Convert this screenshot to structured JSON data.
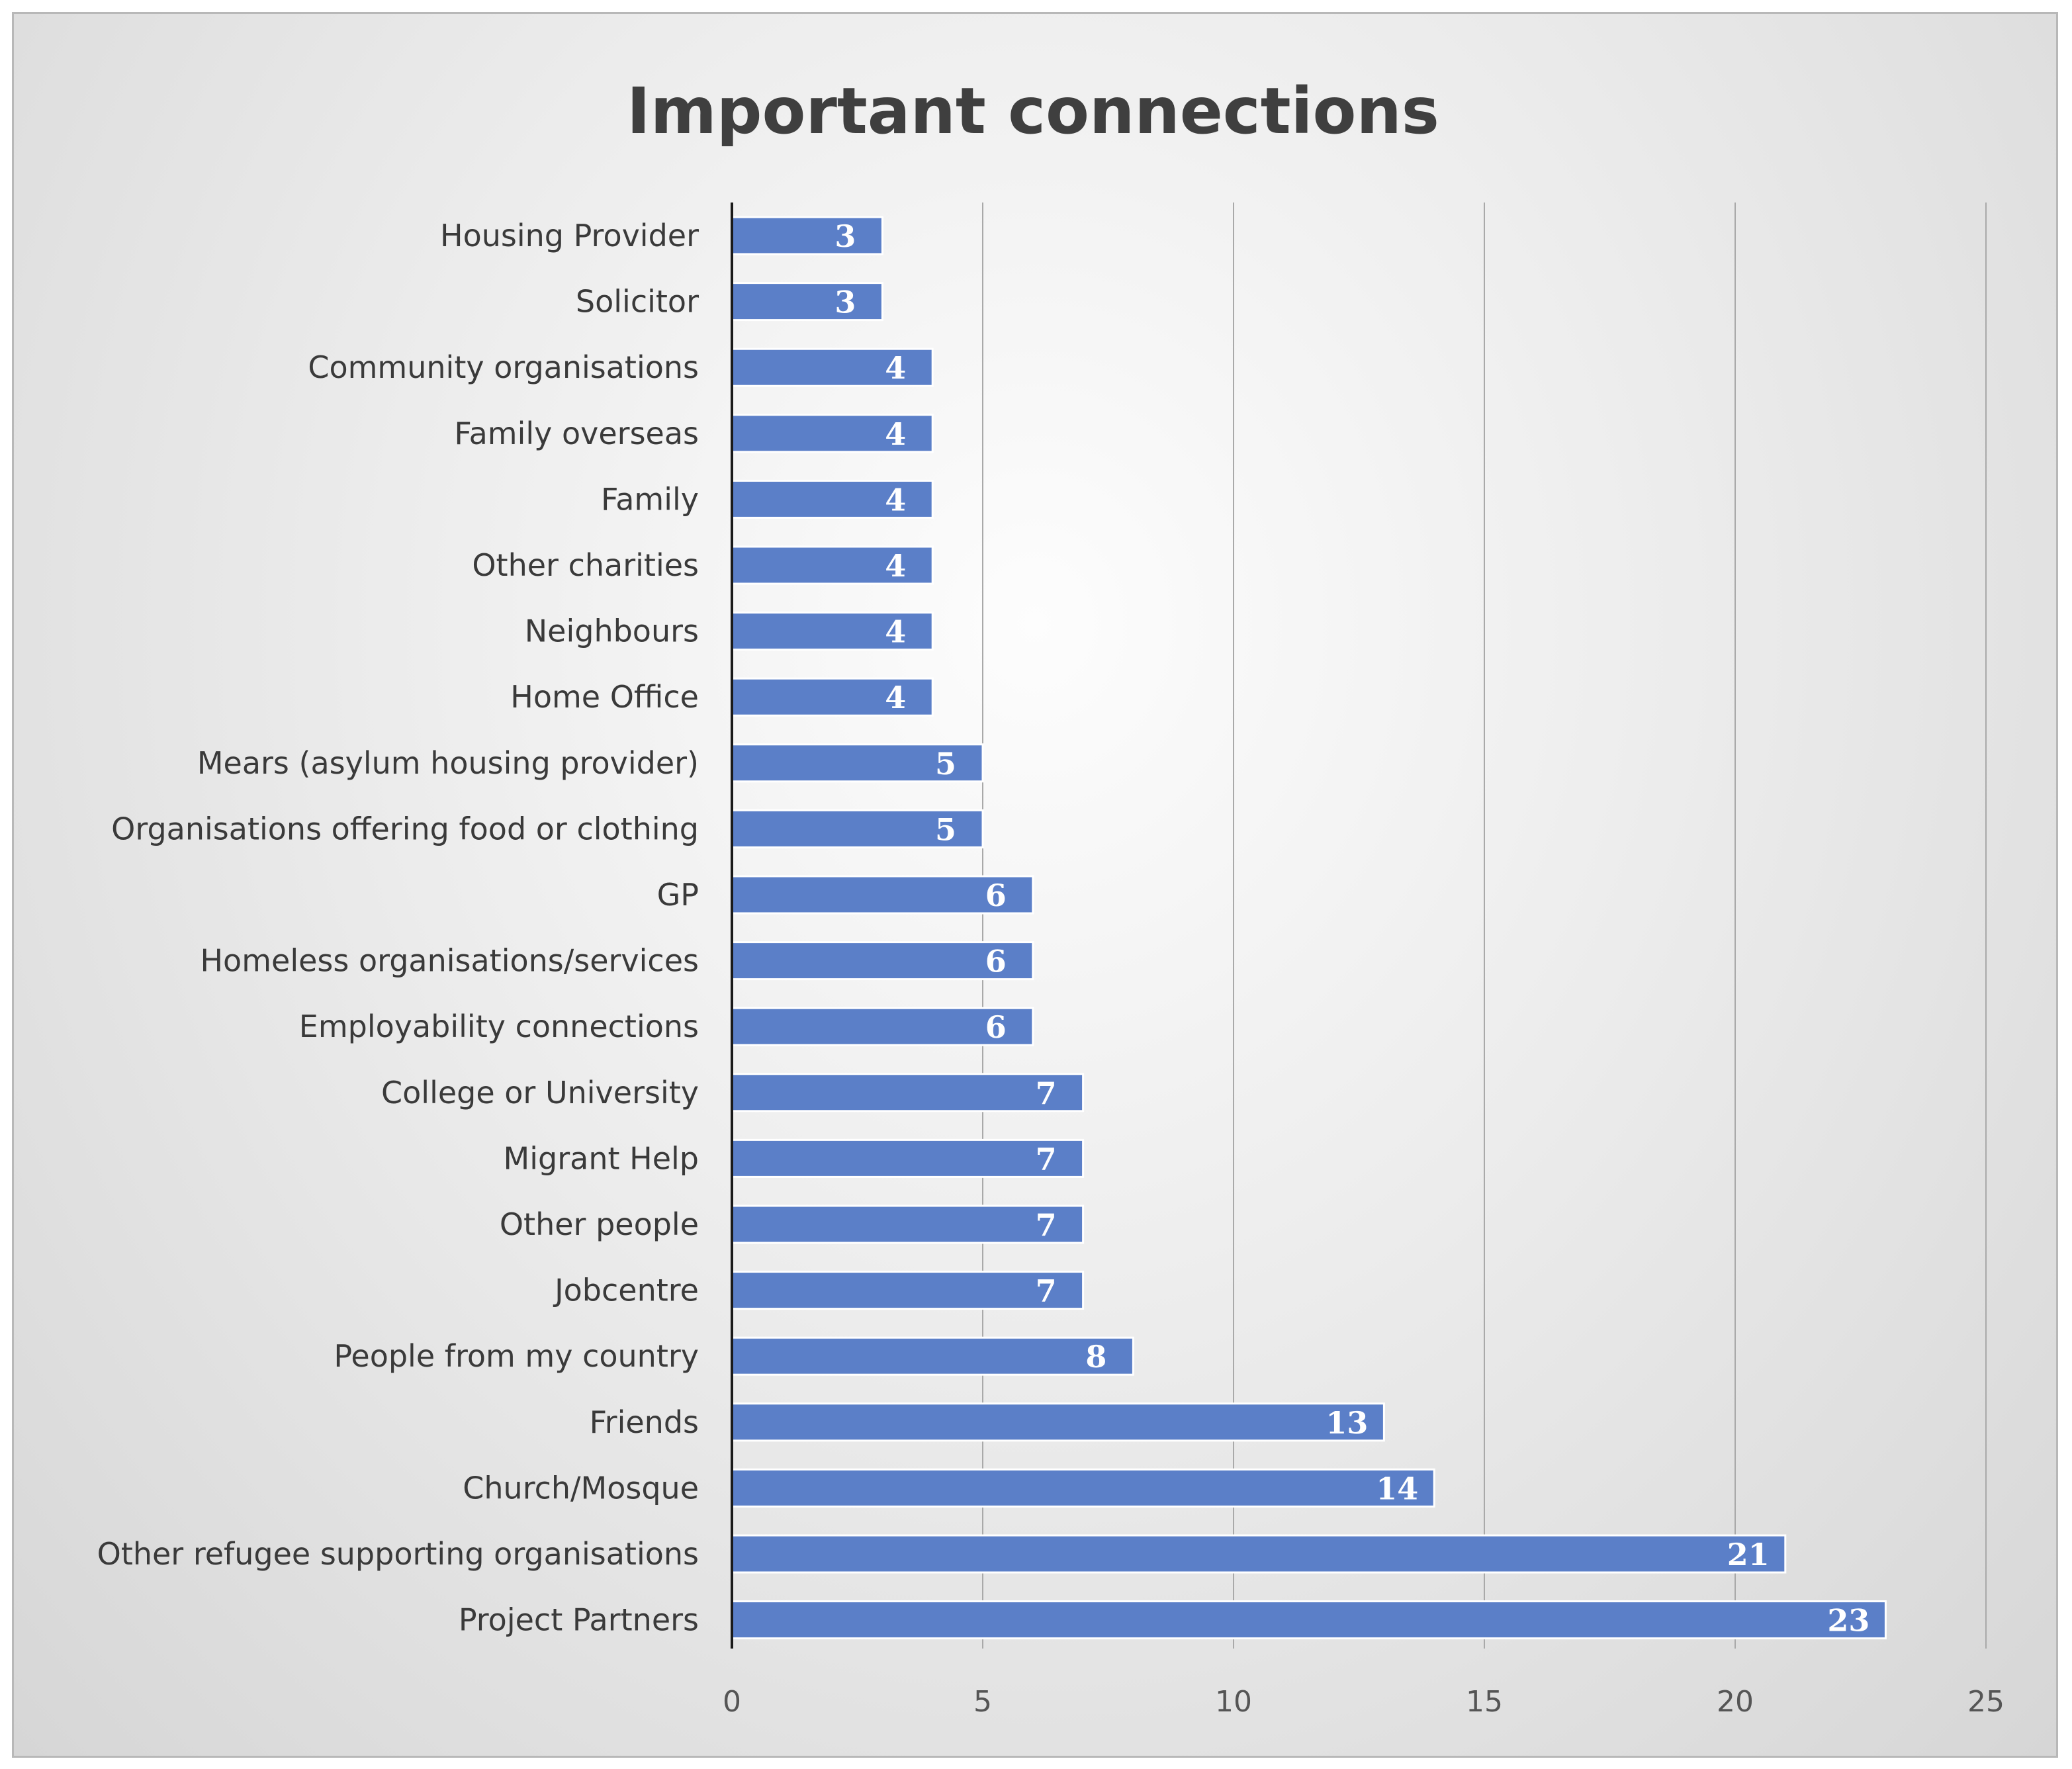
{
  "chart_data": {
    "type": "bar",
    "orientation": "horizontal",
    "title": "Important connections",
    "xlabel": "",
    "ylabel": "",
    "xlim": [
      0,
      25
    ],
    "xticks": [
      0,
      5,
      10,
      15,
      20,
      25
    ],
    "grid": true,
    "bar_color": "#5b7fc8",
    "categories": [
      "Housing Provider",
      "Solicitor",
      "Community organisations",
      "Family overseas",
      "Family",
      "Other charities",
      "Neighbours",
      "Home Office",
      "Mears (asylum housing provider)",
      "Organisations offering food or clothing",
      "GP",
      "Homeless organisations/services",
      "Employability connections",
      "College or University",
      "Migrant Help",
      "Other people",
      "Jobcentre",
      "People from my country",
      "Friends",
      "Church/Mosque",
      "Other refugee supporting organisations",
      "Project Partners"
    ],
    "values": [
      3,
      3,
      4,
      4,
      4,
      4,
      4,
      4,
      5,
      5,
      6,
      6,
      6,
      7,
      7,
      7,
      7,
      8,
      13,
      14,
      21,
      23
    ]
  }
}
